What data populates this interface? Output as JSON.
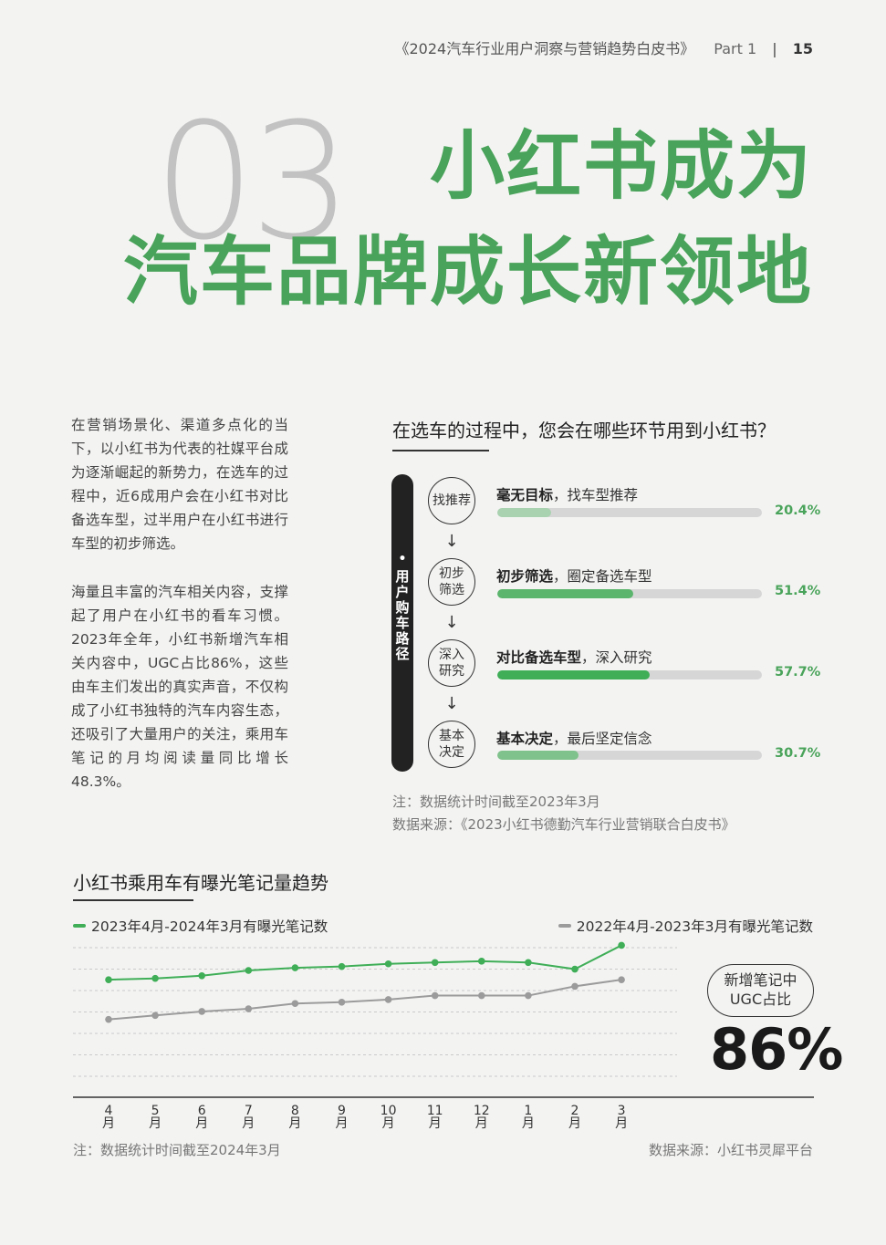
{
  "header": {
    "book_title": "《2024汽车行业用户洞察与营销趋势白皮书》",
    "part": "Part 1",
    "separator": "|",
    "page_number": "15"
  },
  "hero": {
    "section_number": "03",
    "title_line1": "小红书成为",
    "title_line2": "汽车品牌成长新领地"
  },
  "body": {
    "paragraph1": "在营销场景化、渠道多点化的当下，以小红书为代表的社媒平台成为逐渐崛起的新势力，在选车的过程中，近6成用户会在小红书对比备选车型，过半用户在小红书进行车型的初步筛选。",
    "paragraph2": "海量且丰富的汽车相关内容，支撑起了用户在小红书的看车习惯。2023年全年，小红书新增汽车相关内容中，UGC占比86%，这些由车主们发出的真实声音，不仅构成了小红书独特的汽车内容生态，还吸引了大量用户的关注，乘用车笔记的月均阅读量同比增长48.3%。"
  },
  "funnel": {
    "title": "在选车的过程中，您会在哪些环节用到小红书？",
    "path_label_chars": [
      "用",
      "户",
      "购",
      "车",
      "路",
      "径"
    ],
    "path_dot": "•",
    "arrow": "↓",
    "steps": [
      {
        "circle_line1": "找推荐",
        "circle_line2": "",
        "label_bold": "毫无目标",
        "label_rest": "，找车型推荐",
        "value": 20.4,
        "value_text": "20.4%",
        "color": "#a9d2b0"
      },
      {
        "circle_line1": "初步",
        "circle_line2": "筛选",
        "label_bold": "初步筛选",
        "label_rest": "，圈定备选车型",
        "value": 51.4,
        "value_text": "51.4%",
        "color": "#5bb56c"
      },
      {
        "circle_line1": "深入",
        "circle_line2": "研究",
        "label_bold": "对比备选车型",
        "label_rest": "，深入研究",
        "value": 57.7,
        "value_text": "57.7%",
        "color": "#3fae57"
      },
      {
        "circle_line1": "基本",
        "circle_line2": "决定",
        "label_bold": "基本决定",
        "label_rest": "，最后坚定信念",
        "value": 30.7,
        "value_text": "30.7%",
        "color": "#7fc28b"
      }
    ],
    "note": "注：数据统计时间截至2023年3月",
    "source": "数据来源：《2023小红书德勤汽车行业营销联合白皮书》"
  },
  "trend": {
    "title": "小红书乘用车有曝光笔记量趋势",
    "ugc_label_line1": "新增笔记中",
    "ugc_label_line2": "UGC占比",
    "ugc_value": "86%",
    "note": "注：数据统计时间截至2024年3月",
    "source": "数据来源：小红书灵犀平台"
  },
  "chart_data": {
    "type": "line",
    "title": "小红书乘用车有曝光笔记量趋势",
    "xlabel": "",
    "ylabel": "",
    "categories": [
      "4月",
      "5月",
      "6月",
      "7月",
      "8月",
      "9月",
      "10月",
      "11月",
      "12月",
      "1月",
      "2月",
      "3月"
    ],
    "category_numbers": [
      "4",
      "5",
      "6",
      "7",
      "8",
      "9",
      "10",
      "11",
      "12",
      "1",
      "2",
      "3"
    ],
    "category_unit": "月",
    "ylim": [
      0,
      100
    ],
    "grid": true,
    "legend_position": "top",
    "series": [
      {
        "name": "2023年4月-2024年3月有曝光笔记数",
        "color": "#3fae57",
        "values": [
          73,
          74,
          76,
          80,
          82,
          83,
          85,
          86,
          87,
          86,
          81,
          99
        ]
      },
      {
        "name": "2022年4月-2023年3月有曝光笔记数",
        "color": "#9b9b9b",
        "values": [
          43,
          46,
          49,
          51,
          55,
          56,
          58,
          61,
          61,
          61,
          68,
          73
        ]
      }
    ]
  }
}
